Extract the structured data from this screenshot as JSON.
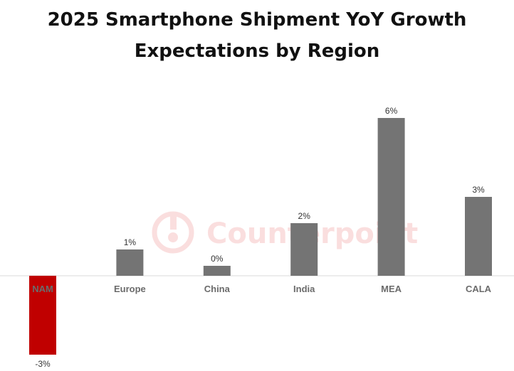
{
  "chart_data": {
    "type": "bar",
    "title_line1": "2025 Smartphone Shipment YoY Growth",
    "title_line2": "Expectations by Region",
    "xlabel": "",
    "ylabel": "",
    "categories": [
      "NAM",
      "Europe",
      "China",
      "India",
      "MEA",
      "CALA"
    ],
    "values": [
      -3,
      1,
      0,
      2,
      6,
      3
    ],
    "value_labels": [
      "-3%",
      "1%",
      "0%",
      "2%",
      "6%",
      "3%"
    ],
    "highlight_category": "NAM",
    "grid": false,
    "legend": "none"
  },
  "colors": {
    "bar": "#747474",
    "highlight": "#c00000",
    "highlight_label": "#ffffff",
    "axis": "#d9d9d9",
    "watermark": "#e23b3b"
  },
  "watermark": {
    "text": "Counterpoint"
  }
}
